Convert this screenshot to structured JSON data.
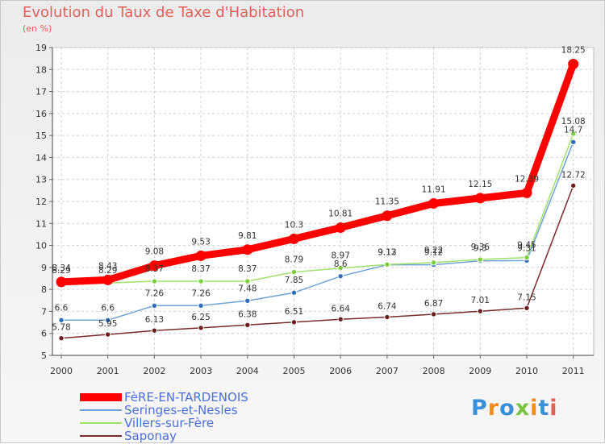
{
  "brand": {
    "logo_text": "Proxiti",
    "logo_colors": [
      "#3a8fd8",
      "#f28c1e",
      "#3a8fd8",
      "#7cc242",
      "#f28c1e",
      "#3a8fd8",
      "#e0605c"
    ]
  },
  "chart_data": {
    "type": "line",
    "title": "Evolution du Taux de Taxe d'Habitation",
    "xlabel": "",
    "ylabel": "(en %)",
    "x": [
      "2000",
      "2001",
      "2002",
      "2003",
      "2004",
      "2005",
      "2006",
      "2007",
      "2008",
      "2009",
      "2010",
      "2011"
    ],
    "ylim": [
      5,
      19
    ],
    "yticks": [
      5,
      6,
      7,
      8,
      9,
      10,
      11,
      12,
      13,
      14,
      15,
      16,
      17,
      18,
      19
    ],
    "grid": true,
    "legend": "bottom-left",
    "series": [
      {
        "name": "FèRE-EN-TARDENOIS",
        "color": "#ff0000",
        "values": [
          8.34,
          8.43,
          9.08,
          9.53,
          9.81,
          10.3,
          10.81,
          11.35,
          11.91,
          12.15,
          12.39,
          18.25
        ]
      },
      {
        "name": "Seringes-et-Nesles",
        "color": "#6fa1d6",
        "values": [
          6.6,
          6.6,
          7.26,
          7.26,
          7.48,
          7.85,
          8.6,
          9.12,
          9.12,
          9.3,
          9.31,
          14.7
        ]
      },
      {
        "name": "Villers-sur-Fère",
        "color": "#9fe26a",
        "values": [
          8.29,
          8.29,
          8.37,
          8.37,
          8.37,
          8.79,
          8.97,
          9.13,
          9.22,
          9.36,
          9.45,
          15.08
        ]
      },
      {
        "name": "Saponay",
        "color": "#7a2a2a",
        "values": [
          5.78,
          5.95,
          6.13,
          6.25,
          6.38,
          6.51,
          6.64,
          6.74,
          6.87,
          7.01,
          7.15,
          12.72
        ]
      }
    ],
    "data_labels": [
      [
        "8.34",
        "8.43",
        "9.08",
        "9.53",
        "9.81",
        "10.3",
        "10.81",
        "11.35",
        "11.91",
        "12.15",
        "12.39",
        "18.25"
      ],
      [
        "6.6",
        "6.6",
        "7.26",
        "7.26",
        "7.48",
        "7.85",
        "8.6",
        "9.12",
        "9.12",
        "9.3",
        "9.31",
        "14.7"
      ],
      [
        "8.29",
        "8.29",
        "8.37",
        "8.37",
        "8.37",
        "8.79",
        "8.97",
        "9.13",
        "9.22",
        "9.36",
        "9.45",
        "15.08"
      ],
      [
        "5.78",
        "5.95",
        "6.13",
        "6.25",
        "6.38",
        "6.51",
        "6.64",
        "6.74",
        "6.87",
        "7.01",
        "7.15",
        "12.72"
      ]
    ]
  }
}
